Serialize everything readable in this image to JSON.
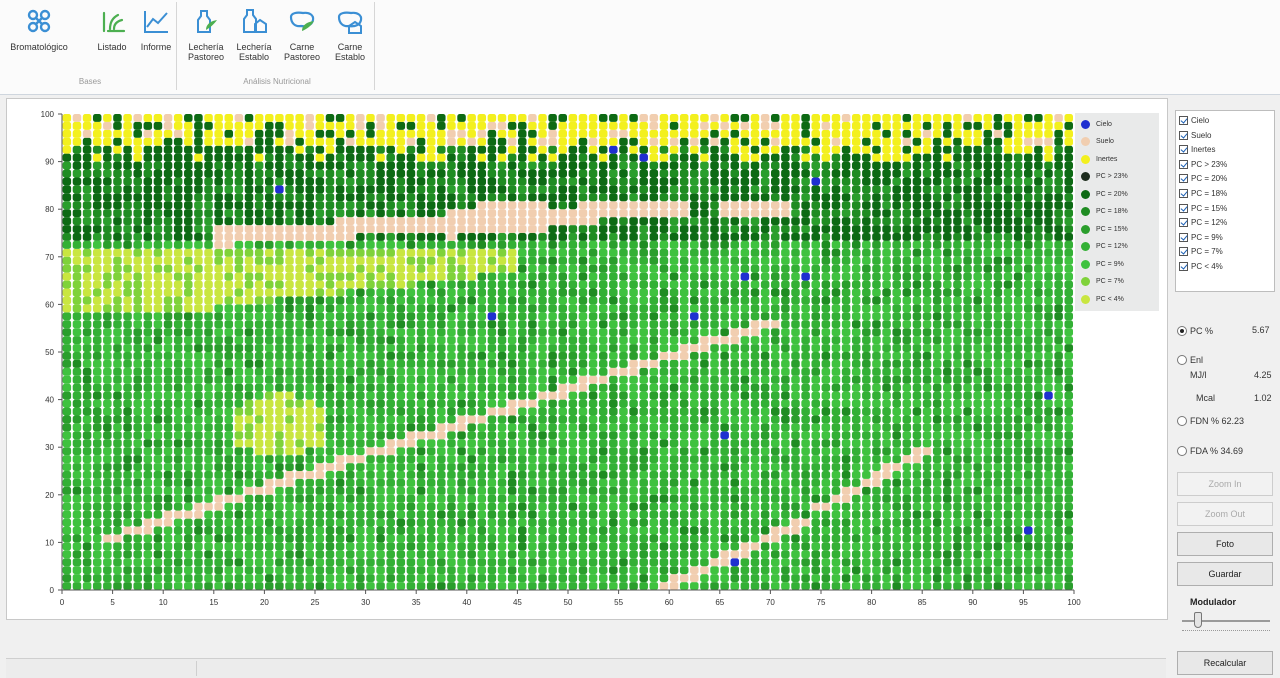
{
  "ribbon": {
    "groups": [
      {
        "title": "Bases",
        "buttons": [
          {
            "label": "Bromatológico",
            "icon": "bromatologico-icon"
          },
          {
            "label": "Listado",
            "icon": "listado-icon"
          },
          {
            "label": "Informe",
            "icon": "informe-icon"
          }
        ]
      },
      {
        "title": "Análisis Nutricional",
        "buttons": [
          {
            "label": "Lechería\nPastoreo",
            "icon": "lecheria-pastoreo-icon"
          },
          {
            "label": "Lechería\nEstablo",
            "icon": "lecheria-establo-icon"
          },
          {
            "label": "Carne\nPastoreo",
            "icon": "carne-pastoreo-icon"
          },
          {
            "label": "Carne\nEstablo",
            "icon": "carne-establo-icon"
          }
        ]
      }
    ]
  },
  "legend": [
    {
      "label": "Cielo",
      "color": "#1f2fd0"
    },
    {
      "label": "Suelo",
      "color": "#f1ceb0"
    },
    {
      "label": "Inertes",
      "color": "#f3f01e"
    },
    {
      "label": "PC > 23%",
      "color": "#1e2d1e"
    },
    {
      "label": "PC = 20%",
      "color": "#0d6a14"
    },
    {
      "label": "PC = 18%",
      "color": "#1f8c22"
    },
    {
      "label": "PC = 15%",
      "color": "#2a9e2c"
    },
    {
      "label": "PC = 12%",
      "color": "#33b035"
    },
    {
      "label": "PC = 9%",
      "color": "#3fc23f"
    },
    {
      "label": "PC = 7%",
      "color": "#7fd23a"
    },
    {
      "label": "PC < 4%",
      "color": "#c9e640"
    }
  ],
  "layers": [
    {
      "label": "Cielo",
      "checked": true
    },
    {
      "label": "Suelo",
      "checked": true
    },
    {
      "label": "Inertes",
      "checked": true
    },
    {
      "label": "PC > 23%",
      "checked": true
    },
    {
      "label": "PC = 20%",
      "checked": true
    },
    {
      "label": "PC = 18%",
      "checked": true
    },
    {
      "label": "PC = 15%",
      "checked": true
    },
    {
      "label": "PC = 12%",
      "checked": true
    },
    {
      "label": "PC = 9%",
      "checked": true
    },
    {
      "label": "PC = 7%",
      "checked": true
    },
    {
      "label": "PC < 4%",
      "checked": true
    }
  ],
  "metrics": {
    "pc_label": "PC %",
    "pc_value": "5.67",
    "enl_label": "Enl",
    "mjl_label": "MJ/l",
    "mjl_value": "4.25",
    "mcal_label": "Mcal",
    "mcal_value": "1.02",
    "fdn_label": "FDN % 62.23",
    "fda_label": "FDA % 34.69",
    "selected": "pc"
  },
  "buttons": {
    "zoom_in": "Zoom In",
    "zoom_out": "Zoom Out",
    "foto": "Foto",
    "guardar": "Guardar",
    "recalcular": "Recalcular"
  },
  "modulador": {
    "label": "Modulador",
    "level": 0.15
  },
  "chart_data": {
    "type": "heatmap",
    "title": "",
    "xlabel": "",
    "ylabel": "",
    "xlim": [
      0,
      100
    ],
    "ylim": [
      0,
      100
    ],
    "xticks": [
      0,
      5,
      10,
      15,
      20,
      25,
      30,
      35,
      40,
      45,
      50,
      55,
      60,
      65,
      70,
      75,
      80,
      85,
      90,
      95,
      100
    ],
    "yticks": [
      0,
      10,
      20,
      30,
      40,
      50,
      60,
      70,
      80,
      90,
      100
    ],
    "grid": false,
    "legend_position": "right",
    "classes": [
      "Cielo",
      "Suelo",
      "Inertes",
      "PC > 23%",
      "PC = 20%",
      "PC = 18%",
      "PC = 15%",
      "PC = 12%",
      "PC = 9%",
      "PC = 7%",
      "PC < 4%"
    ],
    "regions": [
      {
        "class": "Inertes",
        "description": "yellow band along top",
        "y_range": [
          92,
          100
        ],
        "x_range": [
          0,
          100
        ]
      },
      {
        "class": "Suelo",
        "description": "diagonal soil line",
        "from": [
          5,
          12
        ],
        "to": [
          70,
          55
        ]
      },
      {
        "class": "Suelo",
        "description": "upper diagonal soil band",
        "from": [
          15,
          73
        ],
        "to": [
          65,
          82
        ]
      },
      {
        "class": "PC < 4%",
        "description": "light region upper left",
        "x_range": [
          0,
          45
        ],
        "y_range": [
          60,
          72
        ]
      },
      {
        "class": "PC < 4%",
        "description": "oval patch",
        "x_range": [
          17,
          26
        ],
        "y_range": [
          28,
          40
        ]
      },
      {
        "class": "PC = 20%",
        "description": "dark green upper area",
        "x_range": [
          0,
          100
        ],
        "y_range": [
          74,
          92
        ]
      },
      {
        "class": "PC = 9%",
        "description": "main body",
        "x_range": [
          0,
          100
        ],
        "y_range": [
          0,
          72
        ]
      }
    ]
  }
}
